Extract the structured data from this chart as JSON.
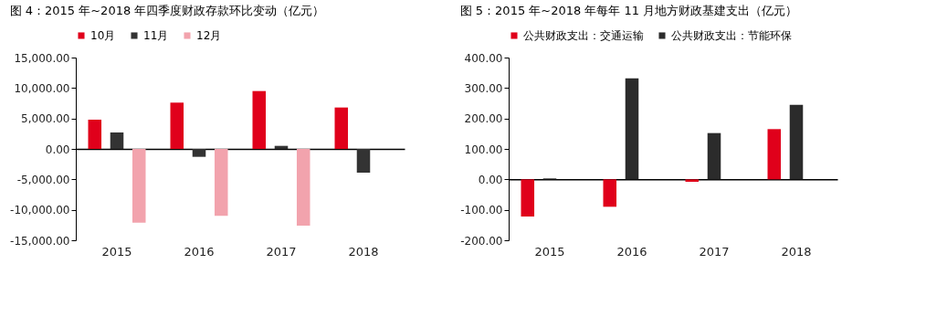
{
  "chart_data": [
    {
      "type": "bar",
      "title": "图 4：2015 年~2018 年四季度财政存款环比变动（亿元）",
      "categories": [
        "2015",
        "2016",
        "2017",
        "2018"
      ],
      "series": [
        {
          "name": "10月",
          "color": "#e0001b",
          "values": [
            4800,
            7600,
            9500,
            6800
          ]
        },
        {
          "name": "11月",
          "color": "#333333",
          "values": [
            2700,
            -1300,
            500,
            -3900
          ]
        },
        {
          "name": "12月",
          "color": "#f2a3ad",
          "values": [
            -12100,
            -11000,
            -12600,
            null
          ]
        }
      ],
      "ylim": [
        -15000,
        15000
      ],
      "yticks": [
        {
          "value": -15000,
          "label": "-15,000.00"
        },
        {
          "value": -10000,
          "label": "-10,000.00"
        },
        {
          "value": -5000,
          "label": "-5,000.00"
        },
        {
          "value": 0,
          "label": "0.00"
        },
        {
          "value": 5000,
          "label": "5,000.00"
        },
        {
          "value": 10000,
          "label": "10,000.00"
        },
        {
          "value": 15000,
          "label": "15,000.00"
        }
      ],
      "legend": "top"
    },
    {
      "type": "bar",
      "title": "图 5：2015 年~2018 年每年 11 月地方财政基建支出（亿元）",
      "categories": [
        "2015",
        "2016",
        "2017",
        "2018"
      ],
      "series": [
        {
          "name": "公共财政支出：交通运输",
          "color": "#e0001b",
          "values": [
            -122,
            -90,
            -8,
            165
          ]
        },
        {
          "name": "公共财政支出：节能环保",
          "color": "#2b2b2b",
          "values": [
            3,
            332,
            152,
            245
          ]
        }
      ],
      "ylim": [
        -200,
        400
      ],
      "yticks": [
        {
          "value": -200,
          "label": "-200.00"
        },
        {
          "value": -100,
          "label": "-100.00"
        },
        {
          "value": 0,
          "label": "0.00"
        },
        {
          "value": 100,
          "label": "100.00"
        },
        {
          "value": 200,
          "label": "200.00"
        },
        {
          "value": 300,
          "label": "300.00"
        },
        {
          "value": 400,
          "label": "400.00"
        }
      ],
      "legend": "top"
    }
  ]
}
